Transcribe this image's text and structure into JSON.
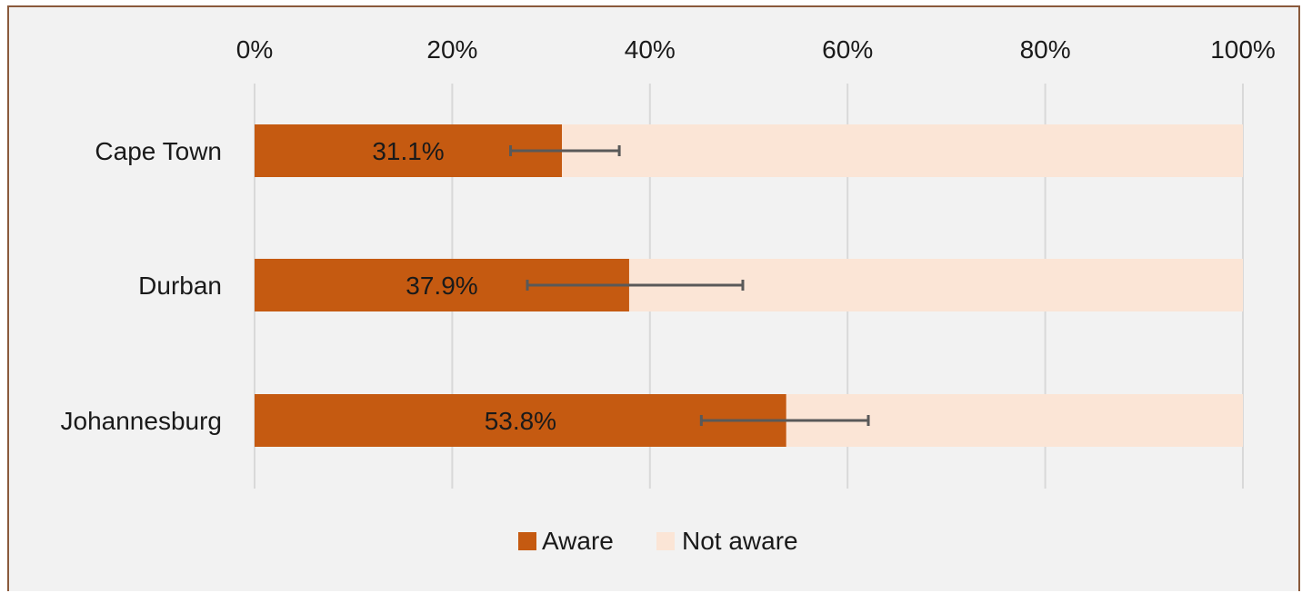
{
  "chart_data": {
    "type": "bar",
    "orientation": "horizontal",
    "stacked": true,
    "percent_stacked": true,
    "categories": [
      "Cape Town",
      "Durban",
      "Johannesburg"
    ],
    "series": [
      {
        "name": "Aware",
        "values": [
          31.1,
          37.9,
          53.8
        ],
        "labels": [
          "31.1%",
          "37.9%",
          "53.8%"
        ],
        "color": "#c55a11",
        "error_low": [
          25.9,
          27.6,
          45.2
        ],
        "error_high": [
          36.9,
          49.4,
          62.1
        ]
      },
      {
        "name": "Not aware",
        "values": [
          68.9,
          62.1,
          46.2
        ],
        "color": "#fbe5d6"
      }
    ],
    "xlim": [
      0,
      100
    ],
    "xticks": [
      0,
      20,
      40,
      60,
      80,
      100
    ],
    "xtick_labels": [
      "0%",
      "20%",
      "40%",
      "60%",
      "80%",
      "100%"
    ],
    "axis_position": "top",
    "grid": true,
    "legend_position": "bottom",
    "colors": {
      "background": "#f2f2f2",
      "gridline": "#d9d9d9",
      "error_bar": "#595959",
      "frame": "#8a5a3c"
    }
  }
}
